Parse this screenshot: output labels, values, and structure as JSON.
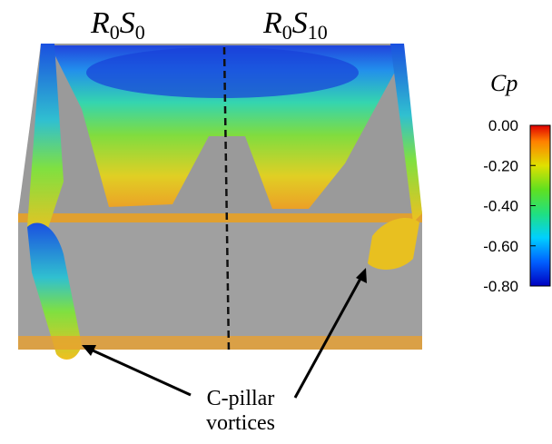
{
  "panels": [
    {
      "base1": "R",
      "sub1": "0",
      "base2": "S",
      "sub2": "0"
    },
    {
      "base1": "R",
      "sub1": "0",
      "base2": "S",
      "sub2": "10"
    }
  ],
  "colorbar": {
    "title": "Cp",
    "ticks": [
      {
        "value": 0,
        "label": "0.00"
      },
      {
        "value": -0.2,
        "label": "-0.20"
      },
      {
        "value": -0.4,
        "label": "-0.40"
      },
      {
        "value": -0.6,
        "label": "-0.60"
      },
      {
        "value": -0.8,
        "label": "-0.80"
      }
    ]
  },
  "annotation": {
    "lines": [
      "C-pillar",
      "vortices"
    ]
  }
}
